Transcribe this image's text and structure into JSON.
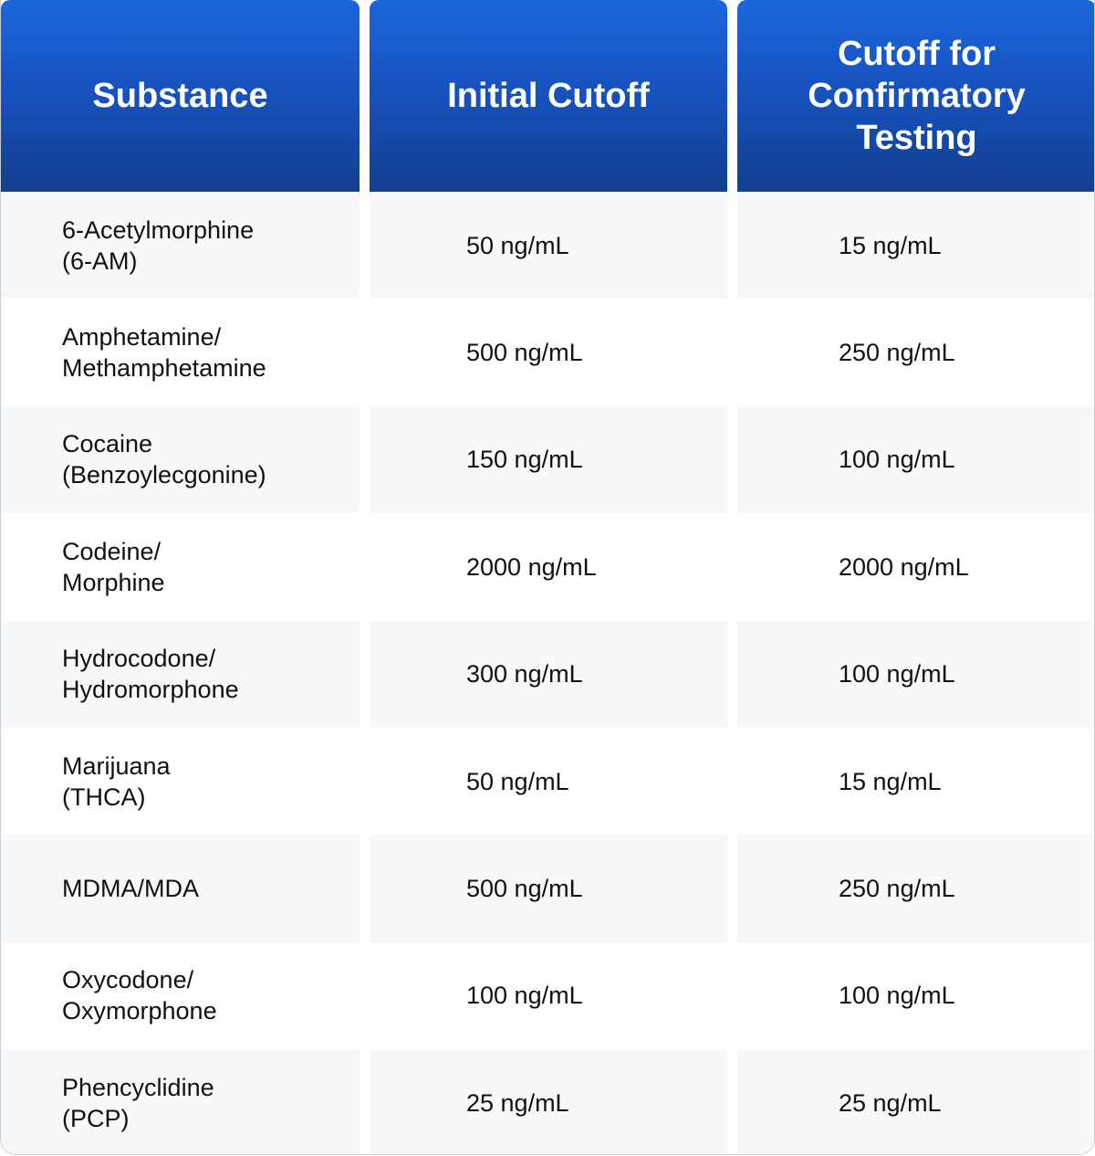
{
  "table": {
    "headers": [
      "Substance",
      "Initial Cutoff",
      "Cutoff for Confirmatory Testing"
    ],
    "rows": [
      {
        "substance": "6-Acetylmorphine\n(6-AM)",
        "initial": "50 ng/mL",
        "confirmatory": "15 ng/mL"
      },
      {
        "substance": "Amphetamine/\nMethamphetamine",
        "initial": "500 ng/mL",
        "confirmatory": "250 ng/mL"
      },
      {
        "substance": "Cocaine\n(Benzoylecgonine)",
        "initial": "150 ng/mL",
        "confirmatory": "100 ng/mL"
      },
      {
        "substance": "Codeine/\nMorphine",
        "initial": "2000 ng/mL",
        "confirmatory": "2000 ng/mL"
      },
      {
        "substance": "Hydrocodone/\nHydromorphone",
        "initial": "300 ng/mL",
        "confirmatory": "100 ng/mL"
      },
      {
        "substance": "Marijuana\n(THCA)",
        "initial": "50 ng/mL",
        "confirmatory": "15 ng/mL"
      },
      {
        "substance": "MDMA/MDA",
        "initial": "500 ng/mL",
        "confirmatory": "250 ng/mL"
      },
      {
        "substance": "Oxycodone/\nOxymorphone",
        "initial": "100 ng/mL",
        "confirmatory": "100 ng/mL"
      },
      {
        "substance": "Phencyclidine\n(PCP)",
        "initial": "25 ng/mL",
        "confirmatory": "25 ng/mL"
      }
    ]
  },
  "colors": {
    "header_top": "#1b66db",
    "header_bottom": "#123f8f",
    "row_alt": "#f7f8fa",
    "row": "#ffffff",
    "text": "#111111"
  }
}
